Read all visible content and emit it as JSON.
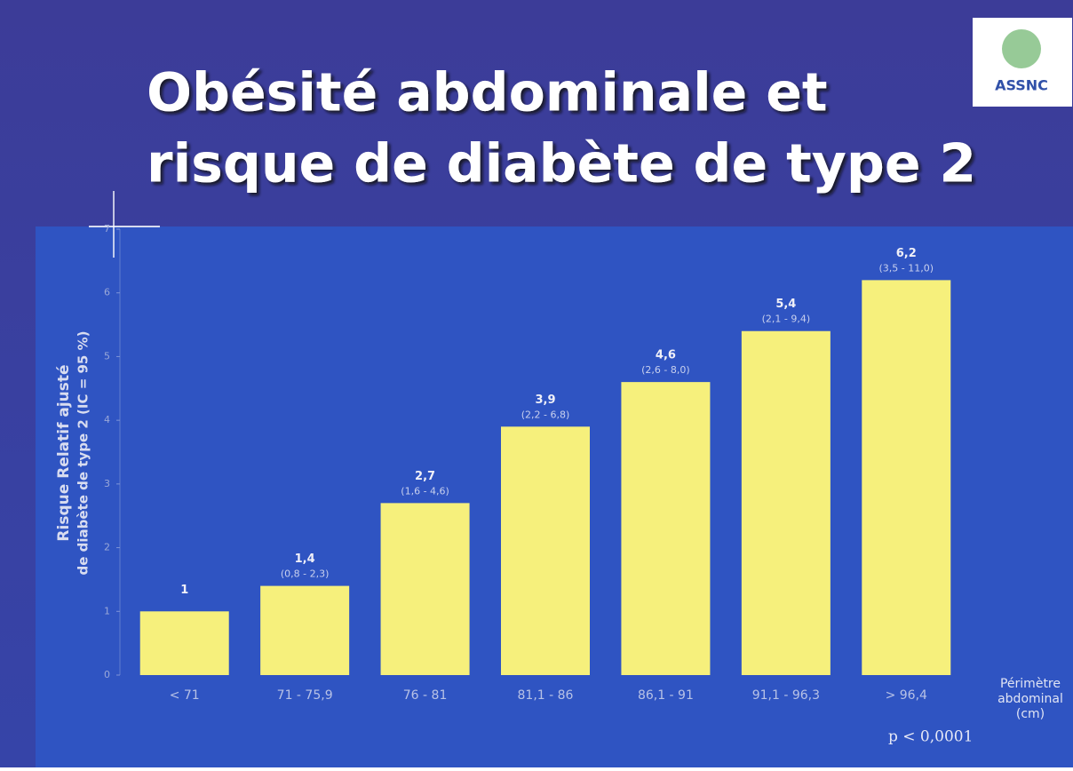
{
  "chart_data": {
    "type": "bar",
    "title_lines": [
      "Obésité abdominale et",
      "risque de diabète de type 2"
    ],
    "logo": "ASSNC",
    "y_label_lines": [
      "Risque Relatif ajusté",
      "de diabète de type 2 (IC = 95 %)"
    ],
    "x_label_lines": [
      "Périmètre",
      "abdominal",
      "(cm)"
    ],
    "annotation": "p < 0,0001",
    "categories": [
      "< 71",
      "71 - 75,9",
      "76 - 81",
      "81,1 - 86",
      "86,1 - 91",
      "91,1 - 96,3",
      "> 96,4"
    ],
    "values": [
      1,
      1.4,
      2.7,
      3.9,
      4.6,
      5.4,
      6.2
    ],
    "value_labels": [
      "1",
      "1,4",
      "2,7",
      "3,9",
      "4,6",
      "5,4",
      "6,2"
    ],
    "ci_labels": [
      null,
      "(0,8 - 2,3)",
      "(1,6 - 4,6)",
      "(2,2 - 6,8)",
      "(2,6 - 8,0)",
      "(2,1 - 9,4)",
      "(3,5 - 11,0)"
    ],
    "color": "#f6f07c",
    "ylim": [
      0,
      7
    ],
    "yticks": [
      0,
      1,
      2,
      3,
      4,
      5,
      6,
      7
    ]
  }
}
